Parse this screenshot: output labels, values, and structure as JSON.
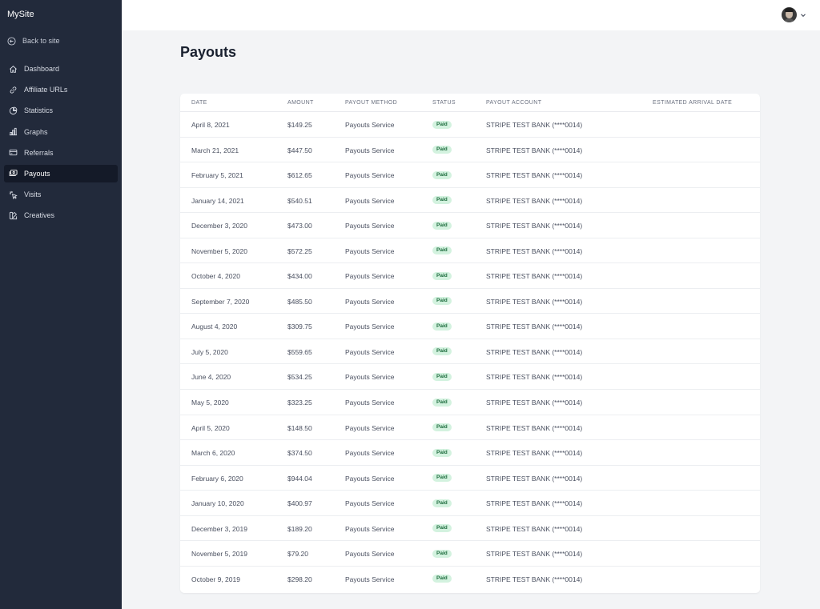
{
  "app": {
    "brand": "MySite"
  },
  "sidebar": {
    "back_label": "Back to site",
    "items": [
      {
        "label": "Dashboard",
        "icon": "home-icon",
        "active": false
      },
      {
        "label": "Affiliate URLs",
        "icon": "link-icon",
        "active": false
      },
      {
        "label": "Statistics",
        "icon": "pie-chart-icon",
        "active": false
      },
      {
        "label": "Graphs",
        "icon": "bar-chart-icon",
        "active": false
      },
      {
        "label": "Referrals",
        "icon": "credit-card-icon",
        "active": false
      },
      {
        "label": "Payouts",
        "icon": "cash-icon",
        "active": true
      },
      {
        "label": "Visits",
        "icon": "cursor-click-icon",
        "active": false
      },
      {
        "label": "Creatives",
        "icon": "color-swatch-icon",
        "active": false
      }
    ]
  },
  "page": {
    "title": "Payouts"
  },
  "table": {
    "headers": [
      "DATE",
      "AMOUNT",
      "PAYOUT METHOD",
      "STATUS",
      "PAYOUT ACCOUNT",
      "ESTIMATED ARRIVAL DATE"
    ],
    "rows": [
      {
        "date": "April 8, 2021",
        "amount": "$149.25",
        "method": "Payouts Service",
        "status": "Paid",
        "account": "STRIPE TEST BANK (****0014)",
        "arrival": ""
      },
      {
        "date": "March 21, 2021",
        "amount": "$447.50",
        "method": "Payouts Service",
        "status": "Paid",
        "account": "STRIPE TEST BANK (****0014)",
        "arrival": ""
      },
      {
        "date": "February 5, 2021",
        "amount": "$612.65",
        "method": "Payouts Service",
        "status": "Paid",
        "account": "STRIPE TEST BANK (****0014)",
        "arrival": ""
      },
      {
        "date": "January 14, 2021",
        "amount": "$540.51",
        "method": "Payouts Service",
        "status": "Paid",
        "account": "STRIPE TEST BANK (****0014)",
        "arrival": ""
      },
      {
        "date": "December 3, 2020",
        "amount": "$473.00",
        "method": "Payouts Service",
        "status": "Paid",
        "account": "STRIPE TEST BANK (****0014)",
        "arrival": ""
      },
      {
        "date": "November 5, 2020",
        "amount": "$572.25",
        "method": "Payouts Service",
        "status": "Paid",
        "account": "STRIPE TEST BANK (****0014)",
        "arrival": ""
      },
      {
        "date": "October 4, 2020",
        "amount": "$434.00",
        "method": "Payouts Service",
        "status": "Paid",
        "account": "STRIPE TEST BANK (****0014)",
        "arrival": ""
      },
      {
        "date": "September 7, 2020",
        "amount": "$485.50",
        "method": "Payouts Service",
        "status": "Paid",
        "account": "STRIPE TEST BANK (****0014)",
        "arrival": ""
      },
      {
        "date": "August 4, 2020",
        "amount": "$309.75",
        "method": "Payouts Service",
        "status": "Paid",
        "account": "STRIPE TEST BANK (****0014)",
        "arrival": ""
      },
      {
        "date": "July 5, 2020",
        "amount": "$559.65",
        "method": "Payouts Service",
        "status": "Paid",
        "account": "STRIPE TEST BANK (****0014)",
        "arrival": ""
      },
      {
        "date": "June 4, 2020",
        "amount": "$534.25",
        "method": "Payouts Service",
        "status": "Paid",
        "account": "STRIPE TEST BANK (****0014)",
        "arrival": ""
      },
      {
        "date": "May 5, 2020",
        "amount": "$323.25",
        "method": "Payouts Service",
        "status": "Paid",
        "account": "STRIPE TEST BANK (****0014)",
        "arrival": ""
      },
      {
        "date": "April 5, 2020",
        "amount": "$148.50",
        "method": "Payouts Service",
        "status": "Paid",
        "account": "STRIPE TEST BANK (****0014)",
        "arrival": ""
      },
      {
        "date": "March 6, 2020",
        "amount": "$374.50",
        "method": "Payouts Service",
        "status": "Paid",
        "account": "STRIPE TEST BANK (****0014)",
        "arrival": ""
      },
      {
        "date": "February 6, 2020",
        "amount": "$944.04",
        "method": "Payouts Service",
        "status": "Paid",
        "account": "STRIPE TEST BANK (****0014)",
        "arrival": ""
      },
      {
        "date": "January 10, 2020",
        "amount": "$400.97",
        "method": "Payouts Service",
        "status": "Paid",
        "account": "STRIPE TEST BANK (****0014)",
        "arrival": ""
      },
      {
        "date": "December 3, 2019",
        "amount": "$189.20",
        "method": "Payouts Service",
        "status": "Paid",
        "account": "STRIPE TEST BANK (****0014)",
        "arrival": ""
      },
      {
        "date": "November 5, 2019",
        "amount": "$79.20",
        "method": "Payouts Service",
        "status": "Paid",
        "account": "STRIPE TEST BANK (****0014)",
        "arrival": ""
      },
      {
        "date": "October 9, 2019",
        "amount": "$298.20",
        "method": "Payouts Service",
        "status": "Paid",
        "account": "STRIPE TEST BANK (****0014)",
        "arrival": ""
      }
    ]
  },
  "colors": {
    "sidebar_bg": "#222a3b",
    "active_item_bg": "#141a28",
    "paid_badge_bg": "#d3f2df",
    "paid_badge_text": "#1c6b3c"
  }
}
